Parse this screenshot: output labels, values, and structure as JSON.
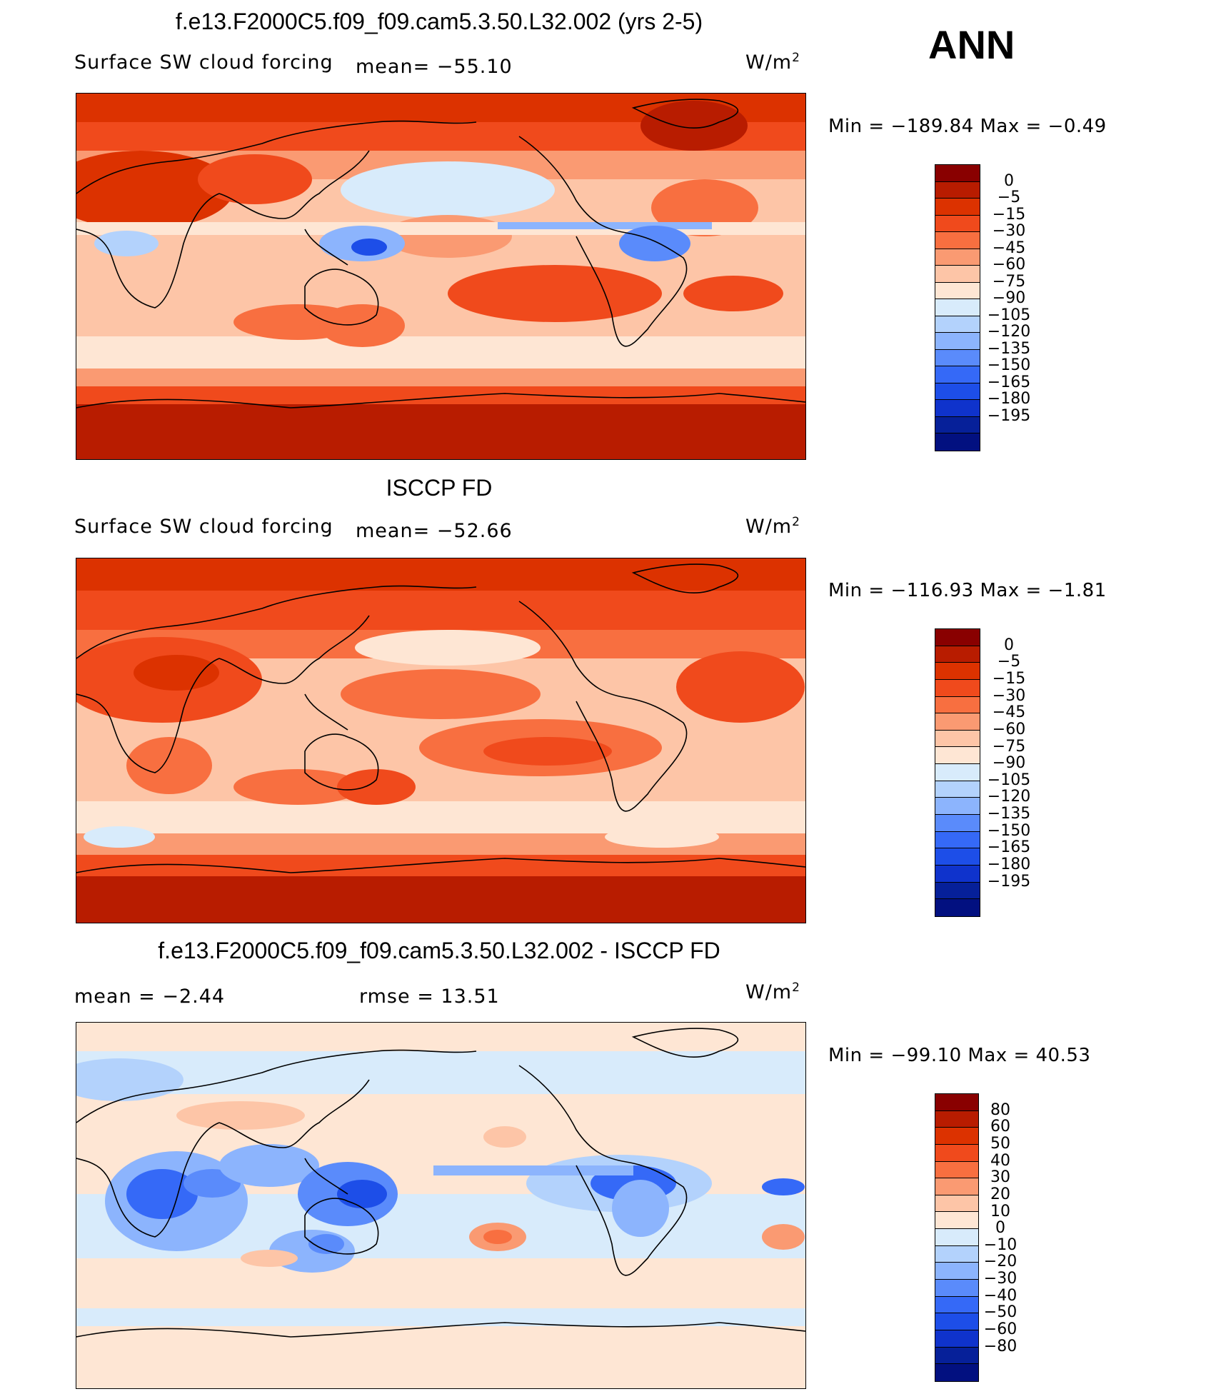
{
  "season": "ANN",
  "colors": {
    "coast": "#000000",
    "abs_scale": [
      "#890000",
      "#b81c00",
      "#dc3200",
      "#f04a1c",
      "#f86f40",
      "#fa9a72",
      "#fdc5a7",
      "#fee6d4",
      "#d8ebfb",
      "#b3d2fc",
      "#8cb4fd",
      "#5a8bfb",
      "#3569f7",
      "#1d4ee8",
      "#0f33cc",
      "#062099",
      "#021080"
    ],
    "diff_scale": [
      "#890000",
      "#b81c00",
      "#dc3200",
      "#f04a1c",
      "#f86f40",
      "#fa9a72",
      "#fdc5a7",
      "#fee6d4",
      "#d8ebfb",
      "#b3d2fc",
      "#8cb4fd",
      "#5a8bfb",
      "#3569f7",
      "#1d4ee8",
      "#0f33cc",
      "#062099",
      "#021080"
    ]
  },
  "panels": [
    {
      "title": "f.e13.F2000C5.f09_f09.cam5.3.50.L32.002 (yrs 2-5)",
      "variable": "Surface SW cloud forcing",
      "mean_text": "mean=  −55.10",
      "unit": "W/m",
      "unit_exp": "2",
      "min_max": "Min  =  −189.84  Max  =    −0.49",
      "ticks": [
        "0",
        "−5",
        "−15",
        "−30",
        "−45",
        "−60",
        "−75",
        "−90",
        "−105",
        "−120",
        "−135",
        "−150",
        "−165",
        "−180",
        "−195"
      ]
    },
    {
      "title": "ISCCP FD",
      "variable": "Surface SW cloud forcing",
      "mean_text": "mean=  −52.66",
      "unit": "W/m",
      "unit_exp": "2",
      "min_max": "Min  =  −116.93  Max  =    −1.81",
      "ticks": [
        "0",
        "−5",
        "−15",
        "−30",
        "−45",
        "−60",
        "−75",
        "−90",
        "−105",
        "−120",
        "−135",
        "−150",
        "−165",
        "−180",
        "−195"
      ]
    },
    {
      "title": "f.e13.F2000C5.f09_f09.cam5.3.50.L32.002 - ISCCP FD",
      "mean_text": "mean  =    −2.44",
      "rmse_text": "rmse  =    13.51",
      "unit": "W/m",
      "unit_exp": "2",
      "min_max": "Min  =  −99.10  Max  =    40.53",
      "ticks": [
        "80",
        "60",
        "50",
        "40",
        "30",
        "20",
        "10",
        "0",
        "−10",
        "−20",
        "−30",
        "−40",
        "−50",
        "−60",
        "−80"
      ]
    }
  ]
}
